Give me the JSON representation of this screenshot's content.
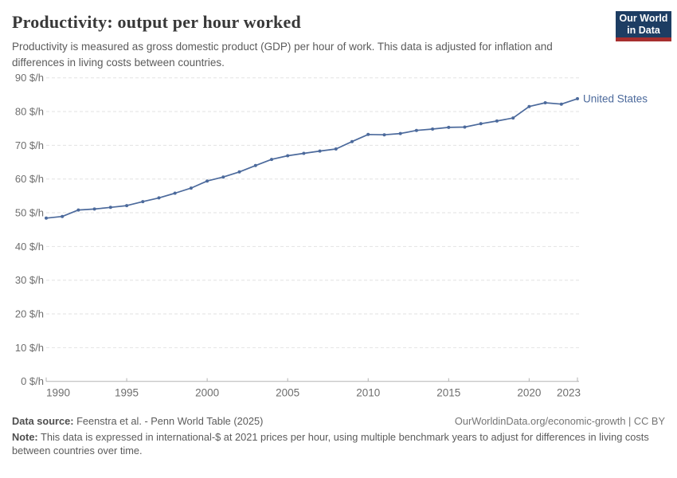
{
  "header": {
    "title": "Productivity: output per hour worked",
    "subtitle": "Productivity is measured as gross domestic product (GDP) per hour of work. This data is adjusted for inflation and differences in living costs between countries.",
    "logo": {
      "line1": "Our World",
      "line2": "in Data"
    }
  },
  "chart_data": {
    "type": "line",
    "title": "Productivity: output per hour worked",
    "unit": "$/h",
    "x": [
      1990,
      1991,
      1992,
      1993,
      1994,
      1995,
      1996,
      1997,
      1998,
      1999,
      2000,
      2001,
      2002,
      2003,
      2004,
      2005,
      2006,
      2007,
      2008,
      2009,
      2010,
      2011,
      2012,
      2013,
      2014,
      2015,
      2016,
      2017,
      2018,
      2019,
      2020,
      2021,
      2022,
      2023
    ],
    "series": [
      {
        "name": "United States",
        "color": "#4c6a9c",
        "values": [
          48.4,
          48.9,
          50.8,
          51.1,
          51.6,
          52.1,
          53.3,
          54.4,
          55.8,
          57.3,
          59.4,
          60.6,
          62.1,
          64.0,
          65.8,
          66.9,
          67.6,
          68.3,
          68.9,
          71.1,
          73.2,
          73.1,
          73.5,
          74.4,
          74.8,
          75.3,
          75.4,
          76.4,
          77.2,
          78.1,
          81.5,
          82.6,
          82.2,
          83.8
        ]
      }
    ],
    "ylim": [
      0,
      90
    ],
    "yticks": [
      0,
      10,
      20,
      30,
      40,
      50,
      60,
      70,
      80,
      90
    ],
    "ytick_suffix": " $/h",
    "xticks": [
      1990,
      1995,
      2000,
      2005,
      2010,
      2015,
      2020,
      2023
    ],
    "grid": "horizontal-dashed",
    "legend_position": "end-of-line"
  },
  "colors": {
    "line": "#4c6a9c",
    "grid": "#e2e2e2",
    "axis": "#b3b3b3",
    "tick_label": "#6e6e6e",
    "logo_bg": "#1d3d63",
    "logo_stripe": "#a62e2e"
  },
  "footer": {
    "datasource_label": "Data source:",
    "datasource": " Feenstra et al. - Penn World Table (2025)",
    "link": "OurWorldinData.org/economic-growth | CC BY",
    "note_label": "Note:",
    "note": " This data is expressed in international-$ at 2021 prices per hour, using multiple benchmark years to adjust for differences in living costs between countries over time."
  }
}
